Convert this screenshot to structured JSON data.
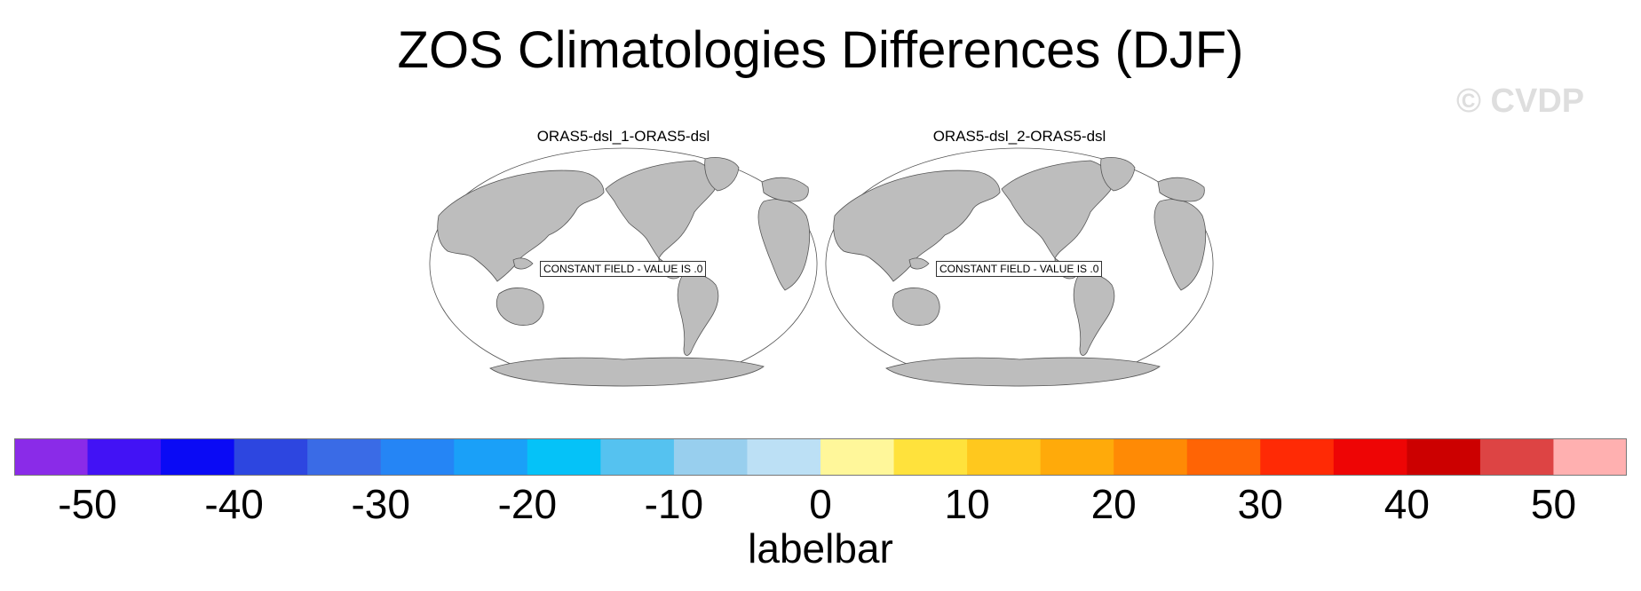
{
  "title": "ZOS Climatologies Differences (DJF)",
  "watermark": "© CVDP",
  "panels": [
    {
      "title": "ORAS5-dsl_1-ORAS5-dsl",
      "constant_label": "CONSTANT FIELD - VALUE IS .0"
    },
    {
      "title": "ORAS5-dsl_2-ORAS5-dsl",
      "constant_label": "CONSTANT FIELD - VALUE IS .0"
    }
  ],
  "chart_data": {
    "type": "heatmap",
    "title": "ZOS Climatologies Differences (DJF)",
    "projection": "robinson",
    "maps": [
      {
        "title": "ORAS5-dsl_1-ORAS5-dsl",
        "field": "constant",
        "value": 0
      },
      {
        "title": "ORAS5-dsl_2-ORAS5-dsl",
        "field": "constant",
        "value": 0
      }
    ],
    "colorbar": {
      "label": "labelbar",
      "min": -55,
      "max": 55,
      "step": 5,
      "tick_values": [
        -50,
        -40,
        -30,
        -20,
        -10,
        0,
        10,
        20,
        30,
        40,
        50
      ],
      "tick_labels": [
        "-50",
        "-40",
        "-30",
        "-20",
        "-10",
        "0",
        "10",
        "20",
        "30",
        "40",
        "50"
      ],
      "colors": [
        "#8a2be8",
        "#4212f5",
        "#0a0af5",
        "#2d46e0",
        "#3a6be6",
        "#2585f5",
        "#1aa0f8",
        "#05c2f8",
        "#55c2f0",
        "#98cfee",
        "#bce0f5",
        "#fff79a",
        "#ffe23c",
        "#ffc81e",
        "#ffaa0a",
        "#ff8a05",
        "#ff6405",
        "#ff2a05",
        "#ee0505",
        "#cc0000",
        "#dd4444",
        "#ffb0b0"
      ]
    }
  }
}
